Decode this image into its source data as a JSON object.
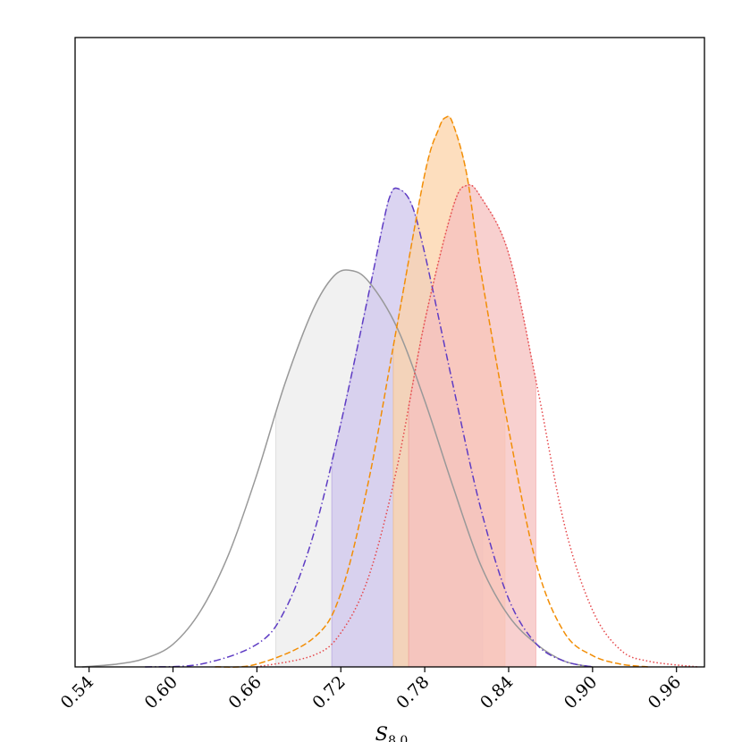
{
  "chart_data": {
    "type": "area",
    "title": "",
    "xlabel": "S_{8,0}",
    "ylabel": "",
    "xlim": [
      0.53,
      0.98
    ],
    "ylim": [
      0,
      1.0
    ],
    "x_ticks": [
      "0.54",
      "0.60",
      "0.66",
      "0.72",
      "0.78",
      "0.84",
      "0.90",
      "0.96"
    ],
    "grid": false,
    "legend": "none",
    "series": [
      {
        "color": "#999999",
        "fill": "#ececec",
        "line_style": "solid",
        "points": [
          [
            0.535,
            0.0
          ],
          [
            0.56,
            0.005
          ],
          [
            0.58,
            0.015
          ],
          [
            0.6,
            0.04
          ],
          [
            0.62,
            0.1
          ],
          [
            0.64,
            0.2
          ],
          [
            0.66,
            0.34
          ],
          [
            0.68,
            0.5
          ],
          [
            0.7,
            0.63
          ],
          [
            0.715,
            0.69
          ],
          [
            0.727,
            0.7
          ],
          [
            0.74,
            0.68
          ],
          [
            0.76,
            0.6
          ],
          [
            0.78,
            0.47
          ],
          [
            0.8,
            0.32
          ],
          [
            0.82,
            0.18
          ],
          [
            0.84,
            0.09
          ],
          [
            0.86,
            0.04
          ],
          [
            0.88,
            0.01
          ],
          [
            0.9,
            0.0
          ]
        ],
        "shaded_interval": [
          0.6735,
          0.7825
        ]
      },
      {
        "color": "#5e3cc4",
        "fill": "#cfc5ec",
        "line_style": "dashdot",
        "points": [
          [
            0.58,
            0.0
          ],
          [
            0.62,
            0.005
          ],
          [
            0.66,
            0.04
          ],
          [
            0.68,
            0.1
          ],
          [
            0.7,
            0.23
          ],
          [
            0.72,
            0.43
          ],
          [
            0.74,
            0.66
          ],
          [
            0.75,
            0.78
          ],
          [
            0.755,
            0.83
          ],
          [
            0.76,
            0.845
          ],
          [
            0.77,
            0.82
          ],
          [
            0.78,
            0.73
          ],
          [
            0.8,
            0.5
          ],
          [
            0.82,
            0.28
          ],
          [
            0.84,
            0.12
          ],
          [
            0.86,
            0.04
          ],
          [
            0.88,
            0.01
          ],
          [
            0.9,
            0.0
          ]
        ],
        "shaded_interval": [
          0.7135,
          0.8215
        ]
      },
      {
        "color": "#f28e06",
        "fill": "#fcd3a8",
        "line_style": "dashed",
        "points": [
          [
            0.63,
            0.0
          ],
          [
            0.66,
            0.005
          ],
          [
            0.7,
            0.05
          ],
          [
            0.72,
            0.13
          ],
          [
            0.74,
            0.33
          ],
          [
            0.76,
            0.6
          ],
          [
            0.78,
            0.87
          ],
          [
            0.79,
            0.95
          ],
          [
            0.795,
            0.97
          ],
          [
            0.8,
            0.96
          ],
          [
            0.81,
            0.87
          ],
          [
            0.82,
            0.7
          ],
          [
            0.84,
            0.42
          ],
          [
            0.86,
            0.18
          ],
          [
            0.88,
            0.06
          ],
          [
            0.9,
            0.02
          ],
          [
            0.92,
            0.005
          ],
          [
            0.94,
            0.0
          ]
        ],
        "shaded_interval": [
          0.7575,
          0.8375
        ]
      },
      {
        "color": "#e5464a",
        "fill": "#f5c0bf",
        "line_style": "dotted",
        "points": [
          [
            0.66,
            0.0
          ],
          [
            0.7,
            0.02
          ],
          [
            0.72,
            0.06
          ],
          [
            0.74,
            0.16
          ],
          [
            0.76,
            0.35
          ],
          [
            0.78,
            0.61
          ],
          [
            0.8,
            0.81
          ],
          [
            0.81,
            0.85
          ],
          [
            0.82,
            0.83
          ],
          [
            0.84,
            0.73
          ],
          [
            0.86,
            0.5
          ],
          [
            0.88,
            0.25
          ],
          [
            0.9,
            0.1
          ],
          [
            0.92,
            0.03
          ],
          [
            0.94,
            0.01
          ],
          [
            0.975,
            0.0
          ]
        ],
        "shaded_interval": [
          0.7685,
          0.8595
        ]
      }
    ]
  }
}
